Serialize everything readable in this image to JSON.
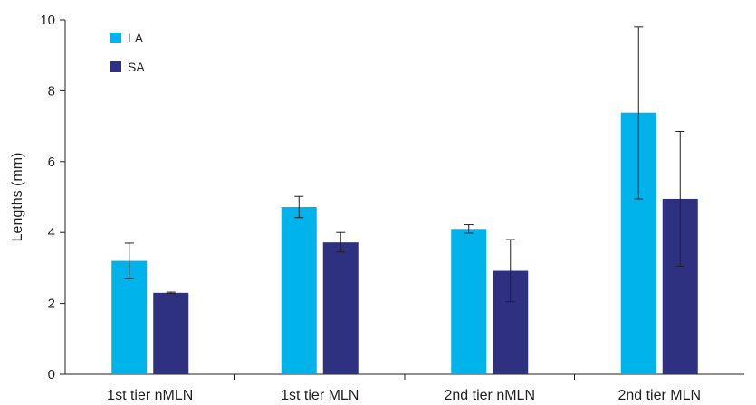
{
  "chart_data": {
    "type": "bar",
    "title": "",
    "xlabel": "",
    "ylabel": "Lengths (mm)",
    "ylim": [
      0,
      10
    ],
    "yticks": [
      0,
      2,
      4,
      6,
      8,
      10
    ],
    "grid": false,
    "legend_position": "top-left",
    "categories": [
      "1st tier nMLN",
      "1st tier MLN",
      "2nd tier nMLN",
      "2nd tier MLN"
    ],
    "series": [
      {
        "name": "LA",
        "color": "#00b4eb",
        "values": [
          3.2,
          4.72,
          4.1,
          7.38
        ],
        "error_low": [
          2.7,
          4.42,
          3.98,
          4.95
        ],
        "error_high": [
          3.7,
          5.02,
          4.22,
          9.8
        ]
      },
      {
        "name": "SA",
        "color": "#2e3080",
        "values": [
          2.3,
          3.72,
          2.92,
          4.95
        ],
        "error_low": [
          2.28,
          3.45,
          2.05,
          3.05
        ],
        "error_high": [
          2.32,
          4.0,
          3.8,
          6.85
        ]
      }
    ]
  }
}
